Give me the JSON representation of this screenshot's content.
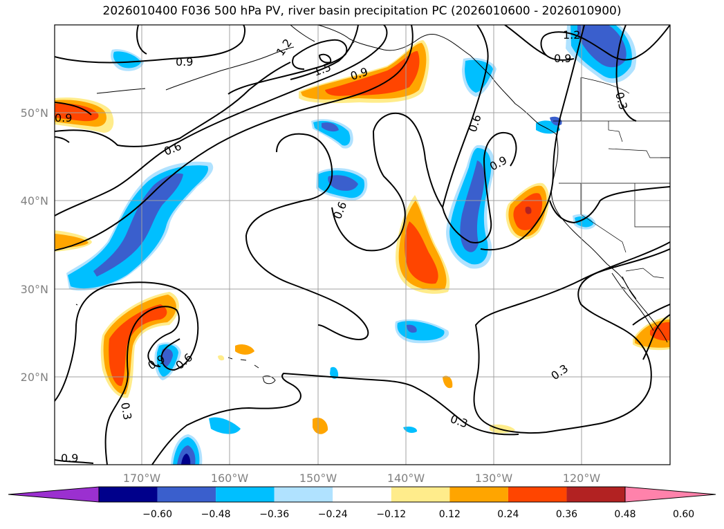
{
  "title": "2026010400 F036 500 hPa PV, river basin precipitation PC (2026010600 - 2026010900)",
  "lat_ticks": [
    "50°N",
    "40°N",
    "30°N",
    "20°N"
  ],
  "lon_ticks": [
    "170°W",
    "160°W",
    "150°W",
    "140°W",
    "130°W",
    "120°W"
  ],
  "contour_labels": [
    "0.9",
    "0.6",
    "0.9",
    "1.2",
    "1.5",
    "0.9",
    "0.6",
    "0.9",
    "0.6",
    "0.6",
    "0.9",
    "0.3",
    "1.2",
    "0.9",
    "0.3",
    "0.3",
    "0.3",
    "0.9",
    "0.6"
  ],
  "colorbar": {
    "colors": [
      "#9b30d0",
      "#00008b",
      "#3a5fcd",
      "#00bfff",
      "#b0e2ff",
      "#ffffff",
      "#ffec8b",
      "#ffa500",
      "#ff4500",
      "#b22222",
      "#ff82ab"
    ],
    "tick_labels": [
      "−0.60",
      "−0.48",
      "−0.36",
      "−0.24",
      "−0.12",
      "0.12",
      "0.24",
      "0.36",
      "0.48",
      "0.60"
    ]
  },
  "colors": {
    "neg_light": "#b0e2ff",
    "neg_mid": "#00bfff",
    "neg_strong": "#3a5fcd",
    "neg_max": "#00008b",
    "pos_light": "#ffec8b",
    "pos_mid": "#ffa500",
    "pos_strong": "#ff4500",
    "pos_max": "#b22222"
  }
}
